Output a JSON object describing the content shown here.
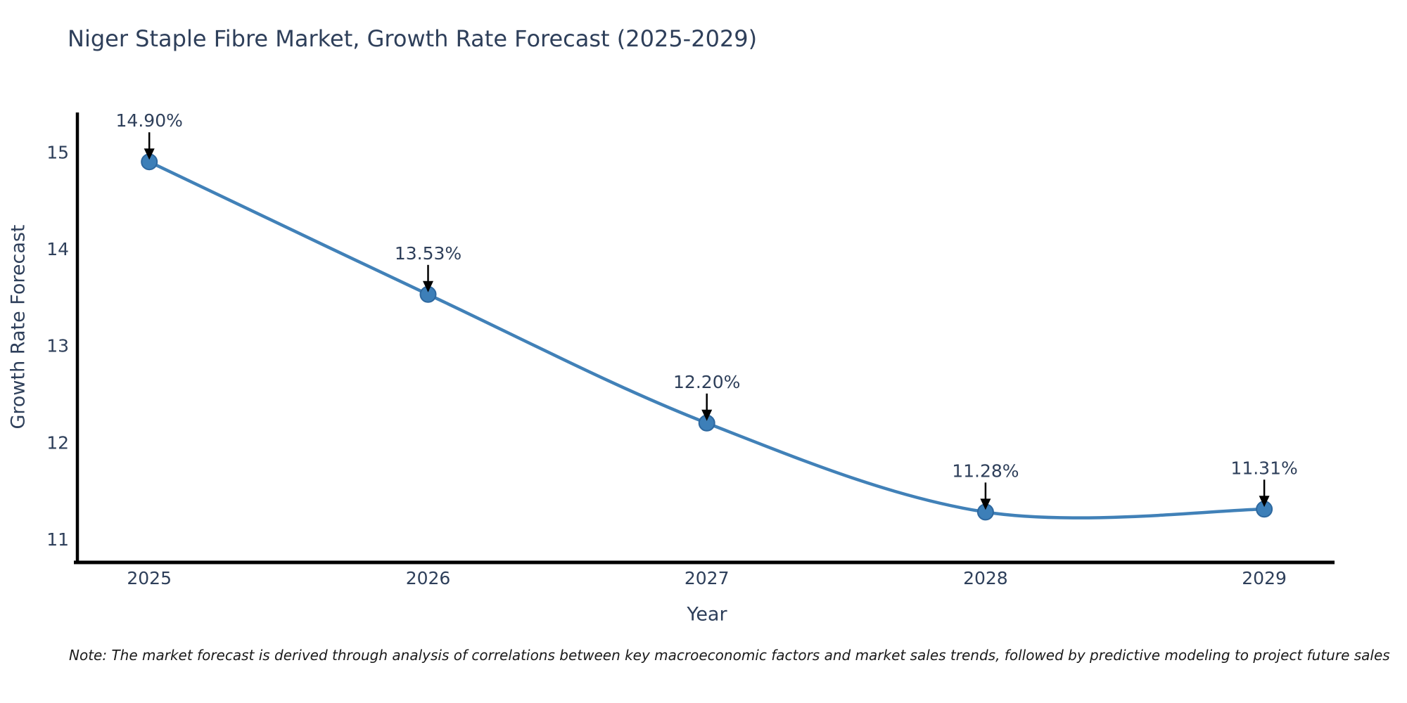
{
  "chart": {
    "title": "Niger Staple Fibre Market, Growth Rate Forecast (2025-2029)",
    "xlabel": "Year",
    "ylabel": "Growth Rate Forecast",
    "note": "Note: The market forecast is derived through analysis of correlations between key macroeconomic factors and market sales trends, followed by predictive modeling to project future sales",
    "colors": {
      "line": "#4181b8",
      "marker": "#3d7fb8",
      "marker_edge": "#2e689f",
      "axis": "#000000",
      "text": "#2e3f5a",
      "annotation_arrow": "#000000",
      "note_text": "#1a1a1a",
      "background": "#ffffff"
    }
  },
  "chart_data": {
    "type": "line",
    "title": "Niger Staple Fibre Market, Growth Rate Forecast (2025-2029)",
    "xlabel": "Year",
    "ylabel": "Growth Rate Forecast",
    "x": [
      2025,
      2026,
      2027,
      2028,
      2029
    ],
    "values": [
      14.9,
      13.53,
      12.2,
      11.28,
      11.31
    ],
    "point_labels": [
      "14.90%",
      "13.53%",
      "12.20%",
      "11.28%",
      "11.31%"
    ],
    "yticks": [
      11,
      12,
      13,
      14,
      15
    ],
    "ylim": [
      10.76,
      15.41
    ],
    "xlim": [
      2024.742,
      2029.252
    ],
    "grid": false,
    "legend": null,
    "line_shape": "spline",
    "markers": true,
    "annotations": "value labels with downward arrows above each point"
  }
}
